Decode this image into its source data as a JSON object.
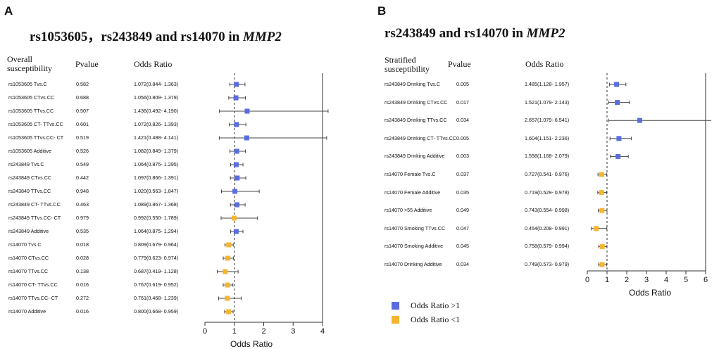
{
  "colors": {
    "above": "#5a6de0",
    "below": "#f5b532",
    "line": "#333333"
  },
  "legend": {
    "above": "Odds Ratio >1",
    "below": "Odds Ratio <1"
  },
  "chart_data": [
    {
      "type": "forest",
      "panel": "A",
      "title_prefix": "rs1053605，rs243849 and rs14070 in ",
      "title_gene": "MMP2",
      "headers": {
        "subgroup": "Overall susceptibility",
        "pvalue": "Pvalue",
        "or": "Odds Ratio"
      },
      "xlabel": "Odds Ratio",
      "xlim": [
        0,
        4
      ],
      "xticks": [
        0,
        1,
        2,
        3,
        4
      ],
      "refline": 1,
      "rows": [
        {
          "label": "rs1053605 Tvs.C",
          "p": "0.582",
          "or_text": "1.072(0.844- 1.363)",
          "or": 1.072,
          "lo": 0.844,
          "hi": 1.363
        },
        {
          "label": "rs1053605 CTvs.CC",
          "p": "0.688",
          "or_text": "1.056(0.809- 1.379)",
          "or": 1.056,
          "lo": 0.809,
          "hi": 1.379
        },
        {
          "label": "rs1053605 TTvs.CC",
          "p": "0.507",
          "or_text": "1.436(0.492- 4.190)",
          "or": 1.436,
          "lo": 0.492,
          "hi": 4.19
        },
        {
          "label": "rs1053605 CT- TTvs.CC",
          "p": "0.601",
          "or_text": "1.072(0.826- 1.393)",
          "or": 1.072,
          "lo": 0.826,
          "hi": 1.393
        },
        {
          "label": "rs1053605 TTvs.CC- CT",
          "p": "0.519",
          "or_text": "1.421(0.488- 4.141)",
          "or": 1.421,
          "lo": 0.488,
          "hi": 4.141
        },
        {
          "label": "rs1053605 Additive",
          "p": "0.526",
          "or_text": "1.082(0.849- 1.379)",
          "or": 1.082,
          "lo": 0.849,
          "hi": 1.379
        },
        {
          "label": "rs243849 Tvs.C",
          "p": "0.549",
          "or_text": "1.064(0.875- 1.295)",
          "or": 1.064,
          "lo": 0.875,
          "hi": 1.295
        },
        {
          "label": "rs243849 CTvs.CC",
          "p": "0.442",
          "or_text": "1.097(0.866- 1.391)",
          "or": 1.097,
          "lo": 0.866,
          "hi": 1.391
        },
        {
          "label": "rs243849 TTvs.CC",
          "p": "0.948",
          "or_text": "1.020(0.563- 1.847)",
          "or": 1.02,
          "lo": 0.563,
          "hi": 1.847
        },
        {
          "label": "rs243849 CT- TTvs.CC",
          "p": "0.463",
          "or_text": "1.089(0.867- 1.368)",
          "or": 1.089,
          "lo": 0.867,
          "hi": 1.368
        },
        {
          "label": "rs243849 TTvs.CC- CT",
          "p": "0.979",
          "or_text": "0.992(0.550- 1.789)",
          "or": 0.992,
          "lo": 0.55,
          "hi": 1.789
        },
        {
          "label": "rs243849 Additive",
          "p": "0.535",
          "or_text": "1.064(0.875- 1.294)",
          "or": 1.064,
          "lo": 0.875,
          "hi": 1.294
        },
        {
          "label": "rs14070 Tvs.C",
          "p": "0.018",
          "or_text": "0.809(0.679- 0.964)",
          "or": 0.809,
          "lo": 0.679,
          "hi": 0.964
        },
        {
          "label": "rs14070 CTvs.CC",
          "p": "0.028",
          "or_text": "0.779(0.623- 0.974)",
          "or": 0.779,
          "lo": 0.623,
          "hi": 0.974
        },
        {
          "label": "rs14070 TTvs.CC",
          "p": "0.138",
          "or_text": "0.687(0.419- 1.128)",
          "or": 0.687,
          "lo": 0.419,
          "hi": 1.128
        },
        {
          "label": "rs14070 CT- TTvs.CC",
          "p": "0.016",
          "or_text": "0.767(0.619- 0.952)",
          "or": 0.767,
          "lo": 0.619,
          "hi": 0.952
        },
        {
          "label": "rs14070 TTvs.CC- CT",
          "p": "0.272",
          "or_text": "0.761(0.468- 1.239)",
          "or": 0.761,
          "lo": 0.468,
          "hi": 1.239
        },
        {
          "label": "rs14070 Additive",
          "p": "0.016",
          "or_text": "0.800(0.668- 0.959)",
          "or": 0.8,
          "lo": 0.668,
          "hi": 0.959
        }
      ]
    },
    {
      "type": "forest",
      "panel": "B",
      "title_prefix": "rs243849 and rs14070 in ",
      "title_gene": "MMP2",
      "headers": {
        "subgroup": "Stratified susceptibility",
        "pvalue": "Pvalue",
        "or": "Odds Ratio"
      },
      "xlabel": "Odds Ratio",
      "xlim": [
        0,
        6
      ],
      "xticks": [
        0,
        1,
        2,
        3,
        4,
        5,
        6
      ],
      "refline": 1,
      "rows": [
        {
          "label": "rs243849 Drinking Tvs.C",
          "p": "0.005",
          "or_text": "1.485(1.128- 1.957)",
          "or": 1.485,
          "lo": 1.128,
          "hi": 1.957
        },
        {
          "label": "rs243849 Drinking CTvs.CC",
          "p": "0.017",
          "or_text": "1.521(1.079- 2.143)",
          "or": 1.521,
          "lo": 1.079,
          "hi": 2.143
        },
        {
          "label": "rs243849 Drinking TTvs.CC",
          "p": "0.034",
          "or_text": "2.657(1.079- 6.541)",
          "or": 2.657,
          "lo": 1.079,
          "hi": 6.541
        },
        {
          "label": "rs243849 Drinking CT- TTvs.CC",
          "p": "0.005",
          "or_text": "1.604(1.151- 2.236)",
          "or": 1.604,
          "lo": 1.151,
          "hi": 2.236
        },
        {
          "label": "rs243849 Drinking Additive",
          "p": "0.003",
          "or_text": "1.558(1.168- 2.079)",
          "or": 1.558,
          "lo": 1.168,
          "hi": 2.079
        },
        {
          "label": "rs14070 Female Tvs.C",
          "p": "0.037",
          "or_text": "0.727(0.541- 0.976)",
          "or": 0.727,
          "lo": 0.541,
          "hi": 0.976
        },
        {
          "label": "rs14070 Female Additive",
          "p": "0.035",
          "or_text": "0.719(0.529- 0.978)",
          "or": 0.719,
          "lo": 0.529,
          "hi": 0.978
        },
        {
          "label": "rs14070 >55 Additive",
          "p": "0.049",
          "or_text": "0.743(0.554- 0.998)",
          "or": 0.743,
          "lo": 0.554,
          "hi": 0.998
        },
        {
          "label": "rs14070 Smoking TTvs.CC",
          "p": "0.047",
          "or_text": "0.454(0.208- 0.991)",
          "or": 0.454,
          "lo": 0.208,
          "hi": 0.991
        },
        {
          "label": "rs14070 Smoking Additive",
          "p": "0.045",
          "or_text": "0.758(0.579- 0.994)",
          "or": 0.758,
          "lo": 0.579,
          "hi": 0.994
        },
        {
          "label": "rs14070 Drinking Additive",
          "p": "0.034",
          "or_text": "0.749(0.573- 0.979)",
          "or": 0.749,
          "lo": 0.573,
          "hi": 0.979
        }
      ]
    }
  ]
}
